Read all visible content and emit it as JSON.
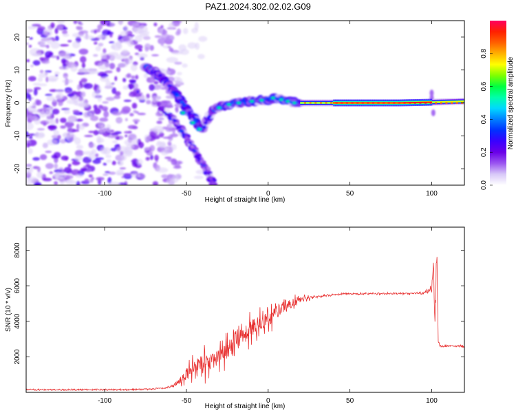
{
  "page": {
    "title": "PAZ1.2024.302.02.02.G09"
  },
  "chart_data": [
    {
      "type": "heatmap",
      "name": "spectrogram",
      "xlabel": "Height of straight line (km)",
      "ylabel": "Frequency (Hz)",
      "xlim": [
        -148,
        120
      ],
      "ylim": [
        -25,
        25
      ],
      "xticks": [
        -100,
        -50,
        0,
        50,
        100
      ],
      "yticks": [
        -20,
        -10,
        0,
        10,
        20
      ],
      "grid": false,
      "features": {
        "noise_region_x": [
          -148,
          -60
        ],
        "diverging_track_points": [
          [
            -75,
            11
          ],
          [
            -68,
            9
          ],
          [
            -60,
            5
          ],
          [
            -55,
            2
          ],
          [
            -50,
            -2
          ],
          [
            -45,
            -5
          ],
          [
            -40,
            -8
          ],
          [
            -37,
            -5
          ],
          [
            -33,
            -2
          ],
          [
            -28,
            -1
          ],
          [
            -20,
            0
          ],
          [
            -10,
            0.5
          ],
          [
            0,
            1
          ],
          [
            5,
            1.5
          ],
          [
            10,
            1
          ],
          [
            20,
            0
          ]
        ],
        "lower_branch_points": [
          [
            -65,
            -2
          ],
          [
            -58,
            -5
          ],
          [
            -52,
            -9
          ],
          [
            -47,
            -13
          ],
          [
            -42,
            -17
          ],
          [
            -37,
            -21
          ],
          [
            -33,
            -25
          ]
        ],
        "carrier_points": [
          [
            20,
            0
          ],
          [
            50,
            0
          ],
          [
            80,
            0
          ],
          [
            100,
            0.2
          ],
          [
            120,
            0.5
          ]
        ],
        "carrier_peak_x": [
          40,
          100
        ]
      },
      "colorbar": {
        "label": "Normalized spectral amplitude",
        "ticks": [
          "0.0",
          "0.2",
          "0.4",
          "0.6",
          "0.8"
        ],
        "tick_values": [
          0,
          0.2,
          0.4,
          0.6,
          0.8
        ],
        "range": [
          0,
          1
        ],
        "colormap": [
          "#ffffff",
          "#d8c8f8",
          "#9a55f0",
          "#6a00e8",
          "#3a00ff",
          "#0030ff",
          "#0080ff",
          "#00d8ff",
          "#00ffaa",
          "#00ff40",
          "#80ff00",
          "#ffff00",
          "#ffb000",
          "#ff6000",
          "#ff2000",
          "#ff0060"
        ]
      }
    },
    {
      "type": "line",
      "name": "snr",
      "xlabel": "Height of straight line (km)",
      "ylabel": "SNR (10 * v/v)",
      "xlim": [
        -148,
        120
      ],
      "ylim": [
        0,
        9300
      ],
      "xticks": [
        -100,
        -50,
        0,
        50,
        100
      ],
      "yticks": [
        2000,
        4000,
        6000,
        8000
      ],
      "grid": false,
      "color": "#e83030",
      "series": [
        {
          "x": [
            -148,
            -120,
            -90,
            -70,
            -60,
            -55,
            -50,
            -45,
            -40,
            -35,
            -30,
            -25,
            -20,
            -15,
            -10,
            -5,
            0,
            5,
            10,
            15,
            20,
            25,
            30,
            35,
            40,
            45,
            50,
            60,
            70,
            80,
            90,
            95,
            100,
            101,
            102,
            103,
            104,
            105,
            106,
            110,
            120
          ],
          "y": [
            150,
            150,
            150,
            180,
            300,
            600,
            1000,
            1400,
            1600,
            1800,
            2000,
            2300,
            2800,
            3200,
            3600,
            3900,
            4200,
            4500,
            4800,
            5000,
            5200,
            5300,
            5400,
            5450,
            5500,
            5550,
            5550,
            5560,
            5560,
            5560,
            5570,
            5600,
            5800,
            7600,
            4500,
            8600,
            3000,
            2600,
            2600,
            2600,
            2600
          ],
          "noise": [
            0,
            0,
            0,
            20,
            80,
            300,
            700,
            900,
            1200,
            1000,
            900,
            1100,
            1300,
            1200,
            1100,
            1000,
            1000,
            900,
            700,
            500,
            350,
            200,
            120,
            80,
            60,
            60,
            60,
            60,
            60,
            60,
            60,
            150,
            300,
            1200,
            2000,
            1500,
            400,
            100,
            50,
            50,
            50
          ]
        }
      ]
    }
  ]
}
